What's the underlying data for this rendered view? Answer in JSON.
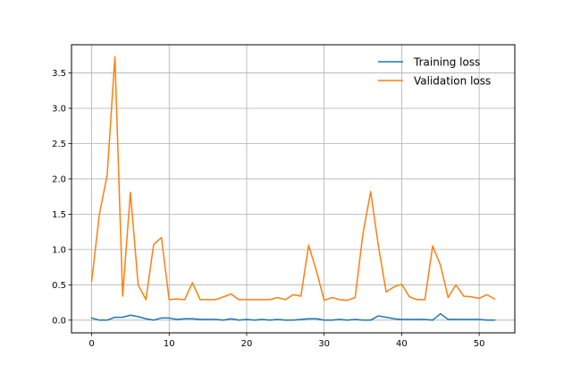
{
  "chart_data": {
    "type": "line",
    "title": "",
    "xlabel": "",
    "ylabel": "",
    "xlim": [
      -2.6,
      54.6
    ],
    "ylim": [
      -0.18,
      3.9
    ],
    "x_ticks": [
      0,
      10,
      20,
      30,
      40,
      50
    ],
    "y_ticks": [
      0.0,
      0.5,
      1.0,
      1.5,
      2.0,
      2.5,
      3.0,
      3.5
    ],
    "y_tick_labels": [
      "0.0",
      "0.5",
      "1.0",
      "1.5",
      "2.0",
      "2.5",
      "3.0",
      "3.5"
    ],
    "grid": true,
    "legend_position": "top-right",
    "x": [
      0,
      1,
      2,
      3,
      4,
      5,
      6,
      7,
      8,
      9,
      10,
      11,
      12,
      13,
      14,
      15,
      16,
      17,
      18,
      19,
      20,
      21,
      22,
      23,
      24,
      25,
      26,
      27,
      28,
      29,
      30,
      31,
      32,
      33,
      34,
      35,
      36,
      37,
      38,
      39,
      40,
      41,
      42,
      43,
      44,
      45,
      46,
      47,
      48,
      49,
      50,
      51,
      52
    ],
    "series": [
      {
        "name": "Training loss",
        "color": "#1f77b4",
        "values": [
          0.03,
          0.0,
          0.0,
          0.04,
          0.04,
          0.07,
          0.05,
          0.02,
          0.0,
          0.03,
          0.03,
          0.01,
          0.02,
          0.02,
          0.01,
          0.01,
          0.01,
          0.0,
          0.02,
          0.0,
          0.01,
          0.0,
          0.01,
          0.0,
          0.01,
          0.0,
          0.0,
          0.01,
          0.02,
          0.02,
          0.0,
          0.0,
          0.01,
          0.0,
          0.01,
          0.0,
          0.0,
          0.06,
          0.04,
          0.02,
          0.01,
          0.01,
          0.01,
          0.01,
          0.0,
          0.09,
          0.01,
          0.01,
          0.01,
          0.01,
          0.01,
          0.0,
          0.0
        ]
      },
      {
        "name": "Validation loss",
        "color": "#ff7f0e",
        "values": [
          0.55,
          1.5,
          2.05,
          3.73,
          0.34,
          1.81,
          0.5,
          0.29,
          1.07,
          1.17,
          0.29,
          0.3,
          0.29,
          0.53,
          0.29,
          0.29,
          0.29,
          0.33,
          0.37,
          0.29,
          0.29,
          0.29,
          0.29,
          0.29,
          0.32,
          0.29,
          0.36,
          0.34,
          1.06,
          0.7,
          0.28,
          0.32,
          0.29,
          0.28,
          0.32,
          1.22,
          1.82,
          1.05,
          0.4,
          0.47,
          0.51,
          0.33,
          0.29,
          0.29,
          1.05,
          0.78,
          0.32,
          0.5,
          0.34,
          0.33,
          0.31,
          0.36,
          0.3
        ]
      }
    ]
  }
}
